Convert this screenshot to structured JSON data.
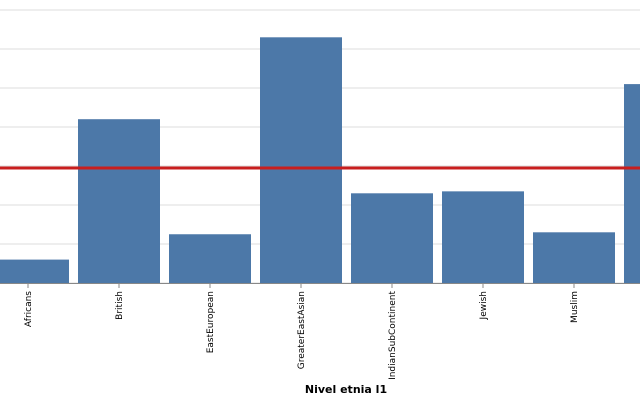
{
  "chart_data": {
    "type": "bar",
    "title": "",
    "xlabel": "Nivel etnia l1",
    "ylabel": "",
    "categories": [
      "Africans",
      "British",
      "EastEuropean",
      "GreaterEastAsian",
      "IndianSubContinent",
      "Jewish",
      "Muslim",
      ""
    ],
    "values": [
      0.6,
      4.2,
      1.25,
      6.3,
      2.3,
      2.35,
      1.3,
      5.1
    ],
    "reference_line": 2.95,
    "ylim": [
      0,
      7
    ],
    "grid": true,
    "colors": {
      "bar": "#4c78a8",
      "reference_line": "#c81e1e",
      "grid": "#dddddd",
      "axis": "#888888"
    }
  }
}
